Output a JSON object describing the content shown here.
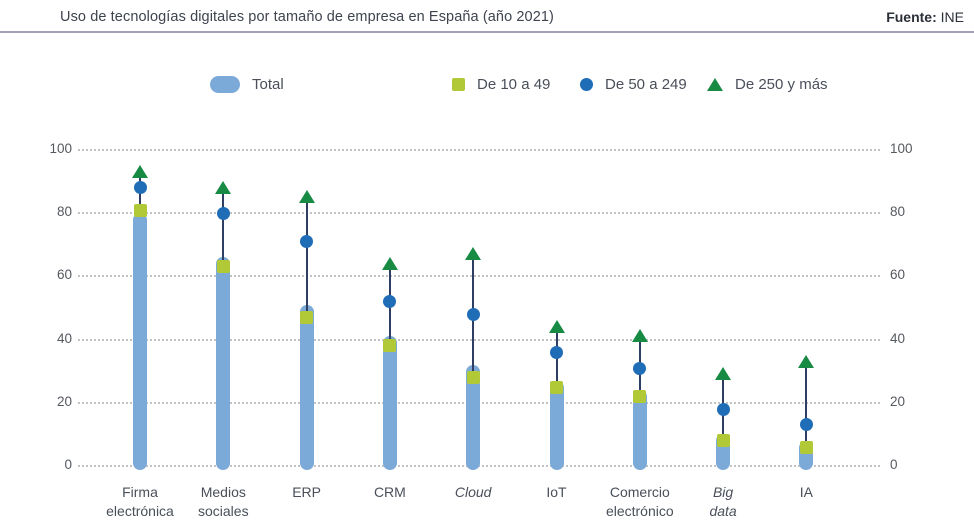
{
  "header": {
    "title": "Uso de tecnologías digitales por tamaño de empresa en España (año 2021)",
    "source_label": "Fuente:",
    "source_value": "INE"
  },
  "legend": {
    "items": [
      {
        "label": "Total",
        "marker": "pill",
        "color": "#7caad8"
      },
      {
        "label": "De 10 a 49",
        "marker": "square",
        "color": "#b2c937"
      },
      {
        "label": "De 50 a 249",
        "marker": "circle",
        "color": "#1f6db6"
      },
      {
        "label": "De 250 y más",
        "marker": "triangle",
        "color": "#178a43"
      }
    ]
  },
  "axis": {
    "ticks": [
      0,
      20,
      40,
      60,
      80,
      100
    ]
  },
  "chart_data": {
    "type": "bar",
    "title": "Uso de tecnologías digitales por tamaño de empresa en España (año 2021)",
    "xlabel": "",
    "ylabel": "",
    "ylim": [
      0,
      100
    ],
    "grid": "horizontal-dotted",
    "legend_position": "top",
    "categories": [
      "Firma electrónica",
      "Medios sociales",
      "ERP",
      "CRM",
      "Cloud",
      "IoT",
      "Comercio electrónico",
      "Big data",
      "IA"
    ],
    "category_layout": [
      {
        "lines": [
          "Firma",
          "electrónica"
        ],
        "italic": false
      },
      {
        "lines": [
          "Medios",
          "sociales"
        ],
        "italic": false
      },
      {
        "lines": [
          "ERP"
        ],
        "italic": false
      },
      {
        "lines": [
          "CRM"
        ],
        "italic": false
      },
      {
        "lines": [
          "Cloud"
        ],
        "italic": true
      },
      {
        "lines": [
          "IoT"
        ],
        "italic": false
      },
      {
        "lines": [
          "Comercio",
          "electrónico"
        ],
        "italic": false
      },
      {
        "lines": [
          "Big",
          "data"
        ],
        "italic": true
      },
      {
        "lines": [
          "IA"
        ],
        "italic": false
      }
    ],
    "series": [
      {
        "name": "Total",
        "style": "bar",
        "color": "#7caad8",
        "values": [
          80,
          66,
          51,
          41,
          32,
          27,
          24,
          10,
          8
        ]
      },
      {
        "name": "De 10 a 49",
        "style": "square",
        "color": "#b2c937",
        "values": [
          81,
          63,
          47,
          38,
          28,
          25,
          22,
          8,
          6
        ]
      },
      {
        "name": "De 50 a 249",
        "style": "circle",
        "color": "#1f6db6",
        "values": [
          88,
          80,
          71,
          52,
          48,
          36,
          31,
          18,
          13
        ]
      },
      {
        "name": "De 250 y más",
        "style": "triangle",
        "color": "#178a43",
        "values": [
          93,
          88,
          85,
          64,
          67,
          44,
          41,
          29,
          33
        ]
      }
    ],
    "range_line_color": "#2e3f63"
  }
}
